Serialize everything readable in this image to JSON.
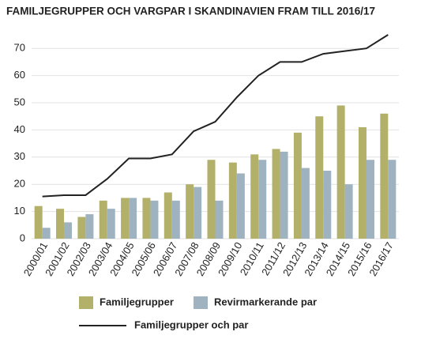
{
  "chart_data": {
    "type": "bar",
    "title": "FAMILJEGRUPPER OCH VARGPAR I SKANDINAVIEN FRAM TILL 2016/17",
    "categories": [
      "2000/01",
      "2001/02",
      "2002/03",
      "2003/04",
      "2004/05",
      "2005/06",
      "2006/07",
      "2007/08",
      "2008/09",
      "2009/10",
      "2010/11",
      "2011/12",
      "2012/13",
      "2013/14",
      "2014/15",
      "2015/16",
      "2016/17"
    ],
    "series": [
      {
        "name": "Familjegrupper",
        "type": "bar",
        "color": "#b3b06a",
        "values": [
          12,
          11,
          8,
          14,
          15,
          15,
          17,
          20,
          29,
          28,
          31,
          33,
          39,
          45,
          49,
          41,
          46
        ]
      },
      {
        "name": "Revirmarkerande par",
        "type": "bar",
        "color": "#9fb2bf",
        "values": [
          4,
          6,
          9,
          11,
          15,
          14,
          14,
          19,
          14,
          24,
          29,
          32,
          26,
          25,
          20,
          29,
          29
        ]
      },
      {
        "name": "Familjegrupper och par",
        "type": "line",
        "color": "#222222",
        "values": [
          15.5,
          16,
          16,
          22,
          29.5,
          29.5,
          31,
          39.5,
          43,
          52,
          60,
          65,
          65,
          68,
          69,
          70,
          75
        ]
      }
    ],
    "ylim": [
      0,
      75
    ],
    "yticks": [
      0,
      10,
      20,
      30,
      40,
      50,
      60,
      70
    ],
    "grid": true
  }
}
